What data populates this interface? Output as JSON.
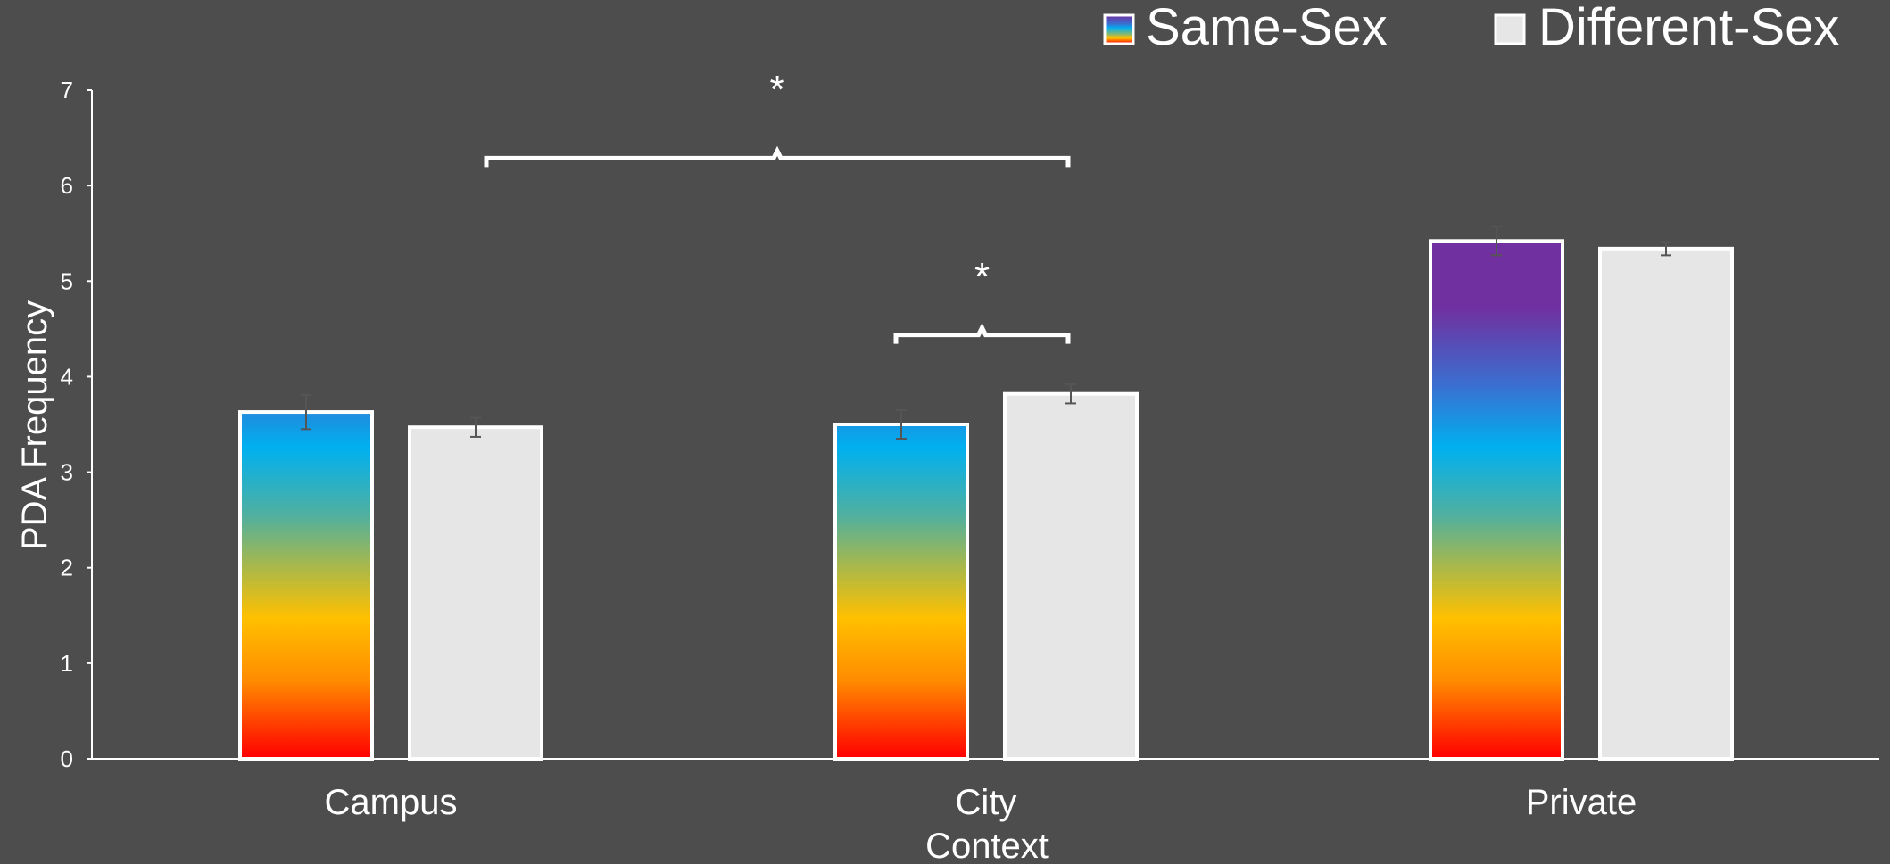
{
  "chart_data": {
    "type": "bar",
    "title": "",
    "xlabel": "Context",
    "ylabel": "PDA Frequency",
    "ylim": [
      0,
      7
    ],
    "yticks": [
      "0",
      "1",
      "2",
      "3",
      "4",
      "5",
      "6",
      "7"
    ],
    "categories": [
      "Campus",
      "City",
      "Private"
    ],
    "series": [
      {
        "name": "Same-Sex",
        "values": [
          3.63,
          3.5,
          5.42
        ],
        "errors": [
          0.18,
          0.15,
          0.15
        ]
      },
      {
        "name": "Different-Sex",
        "values": [
          3.47,
          3.82,
          5.34
        ],
        "errors": [
          0.1,
          0.1,
          0.07
        ]
      }
    ],
    "legend": {
      "position": "top-right"
    },
    "annotations": [
      {
        "text": "*",
        "type": "significance-bracket",
        "between": "Campus Different-Sex to City Different-Sex",
        "level": 6.25
      },
      {
        "text": "*",
        "type": "significance-bracket",
        "between": "City Same-Sex to City Different-Sex",
        "level": 4.4
      }
    ],
    "colors": {
      "background": "#4d4d4d",
      "axis": "#ffffff",
      "different_sex_fill": "#e6e6e6",
      "same_sex_gradient": [
        "#7030a0",
        "#7030a0",
        "#3a6fd0",
        "#00b0f0",
        "#7cb87a",
        "#ffc000",
        "#ff8c00",
        "#ff0000"
      ]
    }
  }
}
